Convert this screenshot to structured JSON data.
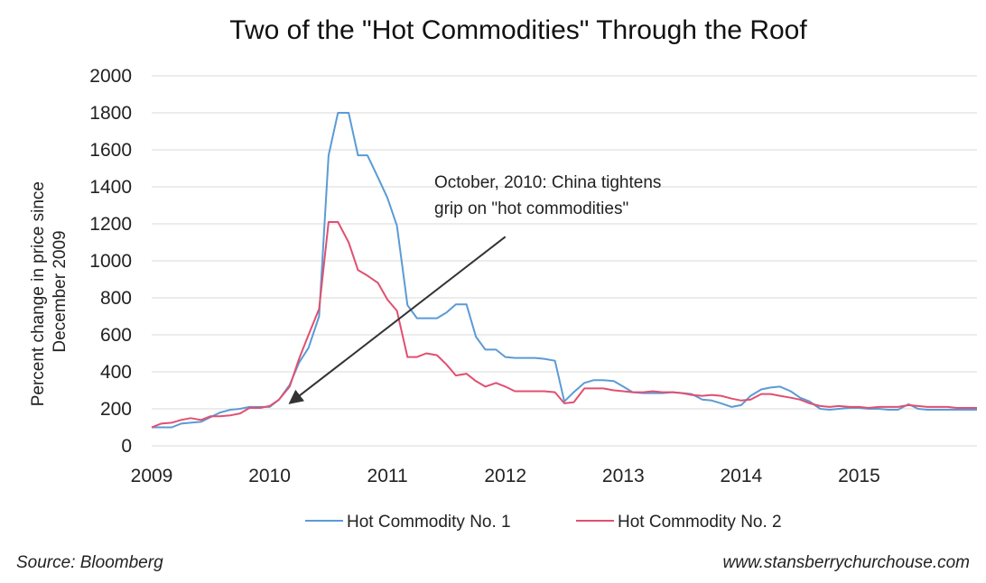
{
  "chart_data": {
    "type": "line",
    "title": "Two of the \"Hot Commodities\" Through the Roof",
    "ylabel_lines": [
      "Percent change in price since",
      "December 2009"
    ],
    "xlabel": "",
    "ylim": [
      0,
      2000
    ],
    "yticks": [
      0,
      200,
      400,
      600,
      800,
      1000,
      1200,
      1400,
      1600,
      1800,
      2000
    ],
    "xlim": [
      2009.0,
      2016.0
    ],
    "xticks": [
      2009,
      2010,
      2011,
      2012,
      2013,
      2014,
      2015
    ],
    "xtick_labels": [
      "2009",
      "2010",
      "2011",
      "2012",
      "2013",
      "2014",
      "2015"
    ],
    "grid": "horizontal",
    "legend_position": "bottom",
    "series": [
      {
        "name": "Hot Commodity No. 1",
        "color": "#5b9bd5",
        "points": [
          [
            2009.0,
            100
          ],
          [
            2009.08,
            100
          ],
          [
            2009.17,
            100
          ],
          [
            2009.25,
            120
          ],
          [
            2009.33,
            125
          ],
          [
            2009.42,
            130
          ],
          [
            2009.5,
            155
          ],
          [
            2009.58,
            180
          ],
          [
            2009.67,
            195
          ],
          [
            2009.75,
            200
          ],
          [
            2009.83,
            210
          ],
          [
            2009.92,
            210
          ],
          [
            2010.0,
            210
          ],
          [
            2010.08,
            250
          ],
          [
            2010.17,
            330
          ],
          [
            2010.25,
            450
          ],
          [
            2010.33,
            530
          ],
          [
            2010.42,
            700
          ],
          [
            2010.5,
            1570
          ],
          [
            2010.58,
            1800
          ],
          [
            2010.67,
            1800
          ],
          [
            2010.75,
            1570
          ],
          [
            2010.83,
            1570
          ],
          [
            2010.92,
            1450
          ],
          [
            2011.0,
            1340
          ],
          [
            2011.08,
            1190
          ],
          [
            2011.17,
            760
          ],
          [
            2011.25,
            690
          ],
          [
            2011.33,
            690
          ],
          [
            2011.42,
            690
          ],
          [
            2011.5,
            720
          ],
          [
            2011.58,
            765
          ],
          [
            2011.67,
            765
          ],
          [
            2011.75,
            590
          ],
          [
            2011.83,
            520
          ],
          [
            2011.92,
            520
          ],
          [
            2012.0,
            480
          ],
          [
            2012.08,
            475
          ],
          [
            2012.17,
            475
          ],
          [
            2012.25,
            475
          ],
          [
            2012.33,
            470
          ],
          [
            2012.42,
            460
          ],
          [
            2012.5,
            240
          ],
          [
            2012.58,
            290
          ],
          [
            2012.67,
            340
          ],
          [
            2012.75,
            355
          ],
          [
            2012.83,
            355
          ],
          [
            2012.92,
            350
          ],
          [
            2013.0,
            320
          ],
          [
            2013.08,
            290
          ],
          [
            2013.17,
            285
          ],
          [
            2013.25,
            285
          ],
          [
            2013.33,
            285
          ],
          [
            2013.42,
            290
          ],
          [
            2013.5,
            285
          ],
          [
            2013.58,
            280
          ],
          [
            2013.67,
            250
          ],
          [
            2013.75,
            245
          ],
          [
            2013.83,
            230
          ],
          [
            2013.92,
            210
          ],
          [
            2014.0,
            220
          ],
          [
            2014.08,
            270
          ],
          [
            2014.17,
            305
          ],
          [
            2014.25,
            315
          ],
          [
            2014.33,
            320
          ],
          [
            2014.42,
            295
          ],
          [
            2014.5,
            260
          ],
          [
            2014.58,
            240
          ],
          [
            2014.67,
            200
          ],
          [
            2014.75,
            195
          ],
          [
            2014.83,
            200
          ],
          [
            2014.92,
            205
          ],
          [
            2015.0,
            205
          ],
          [
            2015.08,
            200
          ],
          [
            2015.17,
            200
          ],
          [
            2015.25,
            195
          ],
          [
            2015.33,
            195
          ],
          [
            2015.42,
            225
          ],
          [
            2015.5,
            200
          ],
          [
            2015.58,
            195
          ],
          [
            2015.67,
            195
          ],
          [
            2015.75,
            195
          ],
          [
            2015.83,
            195
          ],
          [
            2015.92,
            195
          ],
          [
            2016.0,
            195
          ]
        ]
      },
      {
        "name": "Hot Commodity No. 2",
        "color": "#e05070",
        "points": [
          [
            2009.0,
            100
          ],
          [
            2009.08,
            120
          ],
          [
            2009.17,
            125
          ],
          [
            2009.25,
            140
          ],
          [
            2009.33,
            150
          ],
          [
            2009.42,
            140
          ],
          [
            2009.5,
            160
          ],
          [
            2009.58,
            160
          ],
          [
            2009.67,
            165
          ],
          [
            2009.75,
            175
          ],
          [
            2009.83,
            205
          ],
          [
            2009.92,
            205
          ],
          [
            2010.0,
            215
          ],
          [
            2010.08,
            250
          ],
          [
            2010.17,
            320
          ],
          [
            2010.25,
            470
          ],
          [
            2010.33,
            600
          ],
          [
            2010.42,
            740
          ],
          [
            2010.5,
            1210
          ],
          [
            2010.58,
            1210
          ],
          [
            2010.67,
            1100
          ],
          [
            2010.75,
            950
          ],
          [
            2010.83,
            920
          ],
          [
            2010.92,
            880
          ],
          [
            2011.0,
            790
          ],
          [
            2011.08,
            730
          ],
          [
            2011.17,
            480
          ],
          [
            2011.25,
            480
          ],
          [
            2011.33,
            500
          ],
          [
            2011.42,
            490
          ],
          [
            2011.5,
            440
          ],
          [
            2011.58,
            380
          ],
          [
            2011.67,
            390
          ],
          [
            2011.75,
            350
          ],
          [
            2011.83,
            320
          ],
          [
            2011.92,
            340
          ],
          [
            2012.0,
            320
          ],
          [
            2012.08,
            295
          ],
          [
            2012.17,
            295
          ],
          [
            2012.25,
            295
          ],
          [
            2012.33,
            295
          ],
          [
            2012.42,
            290
          ],
          [
            2012.5,
            230
          ],
          [
            2012.58,
            235
          ],
          [
            2012.67,
            310
          ],
          [
            2012.75,
            310
          ],
          [
            2012.83,
            310
          ],
          [
            2012.92,
            300
          ],
          [
            2013.0,
            295
          ],
          [
            2013.08,
            290
          ],
          [
            2013.17,
            290
          ],
          [
            2013.25,
            295
          ],
          [
            2013.33,
            290
          ],
          [
            2013.42,
            290
          ],
          [
            2013.5,
            285
          ],
          [
            2013.58,
            275
          ],
          [
            2013.67,
            270
          ],
          [
            2013.75,
            275
          ],
          [
            2013.83,
            270
          ],
          [
            2013.92,
            255
          ],
          [
            2014.0,
            245
          ],
          [
            2014.08,
            250
          ],
          [
            2014.17,
            280
          ],
          [
            2014.25,
            280
          ],
          [
            2014.33,
            270
          ],
          [
            2014.42,
            260
          ],
          [
            2014.5,
            250
          ],
          [
            2014.58,
            230
          ],
          [
            2014.67,
            215
          ],
          [
            2014.75,
            210
          ],
          [
            2014.83,
            215
          ],
          [
            2014.92,
            210
          ],
          [
            2015.0,
            210
          ],
          [
            2015.08,
            205
          ],
          [
            2015.17,
            210
          ],
          [
            2015.25,
            210
          ],
          [
            2015.33,
            210
          ],
          [
            2015.42,
            220
          ],
          [
            2015.5,
            215
          ],
          [
            2015.58,
            210
          ],
          [
            2015.67,
            210
          ],
          [
            2015.75,
            210
          ],
          [
            2015.83,
            205
          ],
          [
            2015.92,
            205
          ],
          [
            2016.0,
            205
          ]
        ]
      }
    ],
    "annotation": {
      "lines": [
        "October, 2010: China tightens",
        "grip on \"hot commodities\""
      ],
      "arrow_from": [
        2012.0,
        1130
      ],
      "arrow_to": [
        2010.17,
        230
      ]
    }
  },
  "footer": {
    "source": "Source: Bloomberg",
    "url": "www.stansberrychurchouse.com"
  }
}
